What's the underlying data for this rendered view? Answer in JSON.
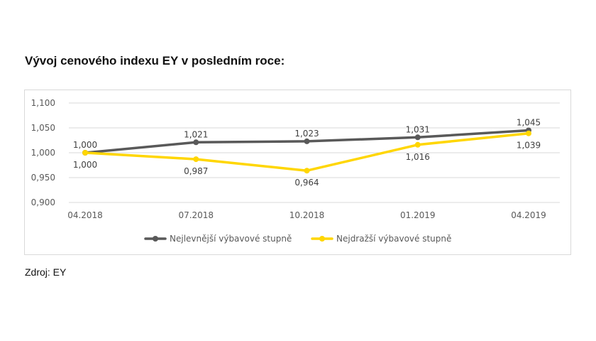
{
  "title": "Vývoj cenového indexu EY v posledním roce:",
  "source": "Zdroj: EY",
  "chart_data": {
    "type": "line",
    "title": "",
    "xlabel": "",
    "ylabel": "",
    "categories": [
      "04.2018",
      "07.2018",
      "10.2018",
      "01.2019",
      "04.2019"
    ],
    "ylim": [
      0.9,
      1.1
    ],
    "yticks": [
      "0,900",
      "0,950",
      "1,000",
      "1,050",
      "1,100"
    ],
    "ytick_values": [
      0.9,
      0.95,
      1.0,
      1.05,
      1.1
    ],
    "grid": true,
    "legend": "bottom",
    "series": [
      {
        "name": "Nejlevnější výbavové stupně",
        "values": [
          1.0,
          1.021,
          1.023,
          1.031,
          1.045
        ],
        "labels": [
          "1,000",
          "1,021",
          "1,023",
          "1,031",
          "1,045"
        ],
        "color": "#595959"
      },
      {
        "name": "Nejdražší výbavové stupně",
        "values": [
          1.0,
          0.987,
          0.964,
          1.016,
          1.039
        ],
        "labels": [
          "1,000",
          "0,987",
          "0,964",
          "1,016",
          "1,039"
        ],
        "color": "#FFD600"
      }
    ]
  }
}
